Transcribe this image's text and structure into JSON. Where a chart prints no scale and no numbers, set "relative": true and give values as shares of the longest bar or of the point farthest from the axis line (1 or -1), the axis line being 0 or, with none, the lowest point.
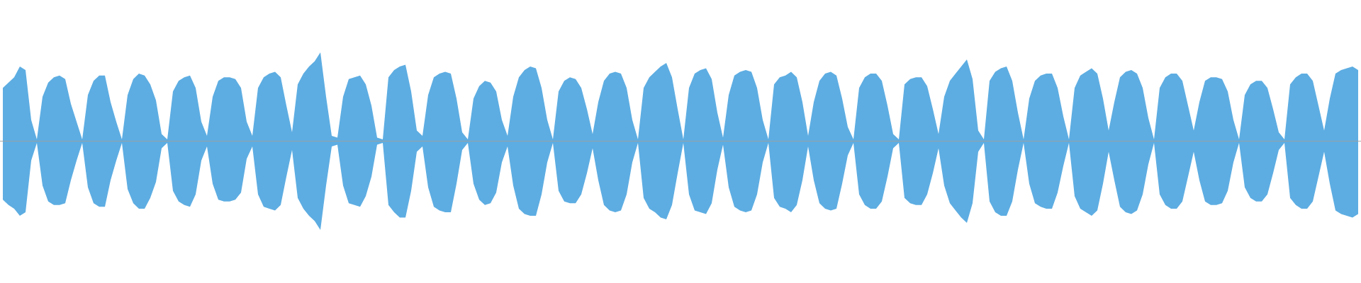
{
  "chart_data": {
    "type": "area",
    "relative": true,
    "categories": [
      null,
      null,
      null,
      null,
      null,
      null,
      null,
      null,
      null,
      null,
      null,
      null,
      null,
      null,
      null,
      null,
      null,
      null,
      null,
      null,
      null,
      null,
      null,
      null,
      null,
      null,
      null,
      null,
      null,
      null,
      null,
      null,
      null,
      null,
      null,
      null,
      null,
      null,
      null,
      null,
      null,
      null,
      null,
      null,
      null,
      null,
      null,
      null,
      null,
      null,
      null,
      null,
      null,
      null,
      null,
      null,
      null,
      null,
      null,
      null,
      null,
      null,
      null,
      null,
      null,
      null,
      null,
      null,
      null,
      null,
      null,
      null,
      null,
      null,
      null,
      null,
      null,
      null,
      null,
      null,
      null,
      null,
      null,
      null,
      null,
      null,
      null,
      null,
      null,
      null,
      null,
      null,
      null,
      null,
      null,
      null,
      null,
      null,
      null,
      null,
      null,
      null,
      null,
      null,
      null,
      null,
      null,
      null,
      null,
      null,
      null,
      null,
      null,
      null,
      null,
      null,
      null,
      null,
      null,
      null,
      null,
      null,
      null,
      null,
      null,
      null,
      null,
      null,
      null,
      null,
      null,
      null,
      null,
      null,
      null,
      null,
      null,
      null,
      null,
      null,
      null,
      null,
      null,
      null,
      null,
      null,
      null,
      null,
      null,
      null,
      null,
      null,
      null,
      null,
      null,
      null,
      null,
      null,
      null,
      null,
      null,
      null,
      null,
      null,
      null,
      null,
      null,
      null,
      null,
      null,
      null,
      null,
      null,
      null,
      null,
      null,
      null,
      null,
      null,
      null,
      null,
      null,
      null,
      null,
      null,
      null,
      null,
      null,
      null,
      null,
      null,
      null,
      null,
      null,
      null,
      null,
      null,
      null,
      null,
      null,
      null,
      null,
      null,
      null,
      null,
      null,
      null,
      null,
      null,
      null,
      null,
      null,
      null,
      null,
      null,
      null,
      null,
      null,
      null,
      null,
      null,
      null,
      null,
      null,
      null,
      null,
      null,
      null,
      null,
      null,
      null,
      null,
      null,
      null,
      null,
      null,
      null,
      null,
      null,
      null
    ],
    "series": [
      {
        "color": "#5dade2",
        "values": [
          0.6,
          0.66,
          0.72,
          0.84,
          0.8,
          0.24,
          0.02,
          0.5,
          0.66,
          0.72,
          0.74,
          0.7,
          0.42,
          0.22,
          0.02,
          0.52,
          0.68,
          0.74,
          0.74,
          0.44,
          0.22,
          0.02,
          0.52,
          0.7,
          0.76,
          0.74,
          0.64,
          0.46,
          0.08,
          0.02,
          0.56,
          0.68,
          0.72,
          0.74,
          0.6,
          0.22,
          0.06,
          0.5,
          0.68,
          0.72,
          0.72,
          0.7,
          0.6,
          0.22,
          0.06,
          0.6,
          0.72,
          0.76,
          0.78,
          0.72,
          0.4,
          0.1,
          0.64,
          0.76,
          0.84,
          0.9,
          1.0,
          0.5,
          0.06,
          0.04,
          0.5,
          0.7,
          0.72,
          0.74,
          0.64,
          0.4,
          0.04,
          0.02,
          0.72,
          0.8,
          0.84,
          0.86,
          0.56,
          0.12,
          0.06,
          0.52,
          0.72,
          0.76,
          0.78,
          0.76,
          0.48,
          0.1,
          0.02,
          0.48,
          0.62,
          0.68,
          0.66,
          0.56,
          0.24,
          0.06,
          0.5,
          0.72,
          0.8,
          0.84,
          0.82,
          0.6,
          0.24,
          0.02,
          0.56,
          0.68,
          0.72,
          0.7,
          0.6,
          0.36,
          0.08,
          0.44,
          0.68,
          0.76,
          0.78,
          0.76,
          0.6,
          0.24,
          0.02,
          0.6,
          0.72,
          0.78,
          0.84,
          0.88,
          0.72,
          0.36,
          0.02,
          0.6,
          0.76,
          0.8,
          0.82,
          0.7,
          0.32,
          0.04,
          0.52,
          0.74,
          0.78,
          0.8,
          0.78,
          0.6,
          0.24,
          0.02,
          0.64,
          0.72,
          0.74,
          0.78,
          0.72,
          0.44,
          0.06,
          0.44,
          0.68,
          0.76,
          0.78,
          0.74,
          0.48,
          0.16,
          0.02,
          0.6,
          0.72,
          0.76,
          0.76,
          0.68,
          0.4,
          0.08,
          0.02,
          0.64,
          0.7,
          0.72,
          0.72,
          0.62,
          0.36,
          0.08,
          0.5,
          0.68,
          0.76,
          0.84,
          0.92,
          0.7,
          0.12,
          0.02,
          0.68,
          0.78,
          0.82,
          0.84,
          0.68,
          0.32,
          0.02,
          0.48,
          0.68,
          0.74,
          0.76,
          0.76,
          0.6,
          0.28,
          0.02,
          0.6,
          0.74,
          0.78,
          0.82,
          0.76,
          0.48,
          0.12,
          0.44,
          0.72,
          0.78,
          0.8,
          0.76,
          0.6,
          0.26,
          0.02,
          0.6,
          0.72,
          0.76,
          0.76,
          0.68,
          0.4,
          0.12,
          0.44,
          0.68,
          0.72,
          0.72,
          0.7,
          0.56,
          0.24,
          0.02,
          0.52,
          0.64,
          0.68,
          0.68,
          0.6,
          0.36,
          0.1,
          0.02,
          0.64,
          0.72,
          0.76,
          0.76,
          0.68,
          0.4,
          0.12,
          0.48,
          0.76,
          0.8,
          0.82,
          0.84,
          0.8
        ]
      },
      {
        "color": "#5dade2",
        "values": [
          -0.66,
          -0.72,
          -0.76,
          -0.84,
          -0.8,
          -0.22,
          -0.02,
          -0.5,
          -0.68,
          -0.72,
          -0.72,
          -0.7,
          -0.44,
          -0.22,
          -0.02,
          -0.52,
          -0.7,
          -0.74,
          -0.74,
          -0.44,
          -0.22,
          -0.02,
          -0.54,
          -0.7,
          -0.76,
          -0.76,
          -0.64,
          -0.46,
          -0.08,
          -0.02,
          -0.56,
          -0.68,
          -0.72,
          -0.74,
          -0.6,
          -0.22,
          -0.06,
          -0.48,
          -0.66,
          -0.68,
          -0.68,
          -0.66,
          -0.58,
          -0.2,
          -0.06,
          -0.6,
          -0.74,
          -0.76,
          -0.78,
          -0.72,
          -0.4,
          -0.1,
          -0.64,
          -0.76,
          -0.84,
          -0.9,
          -1.0,
          -0.5,
          -0.06,
          -0.04,
          -0.5,
          -0.7,
          -0.72,
          -0.74,
          -0.62,
          -0.4,
          -0.04,
          -0.02,
          -0.72,
          -0.8,
          -0.86,
          -0.86,
          -0.56,
          -0.12,
          -0.06,
          -0.52,
          -0.74,
          -0.78,
          -0.8,
          -0.8,
          -0.48,
          -0.1,
          -0.02,
          -0.48,
          -0.66,
          -0.72,
          -0.7,
          -0.58,
          -0.24,
          -0.06,
          -0.5,
          -0.76,
          -0.82,
          -0.84,
          -0.84,
          -0.6,
          -0.24,
          -0.02,
          -0.56,
          -0.68,
          -0.7,
          -0.7,
          -0.6,
          -0.36,
          -0.08,
          -0.44,
          -0.72,
          -0.78,
          -0.8,
          -0.78,
          -0.6,
          -0.24,
          -0.02,
          -0.64,
          -0.76,
          -0.8,
          -0.86,
          -0.88,
          -0.72,
          -0.36,
          -0.02,
          -0.6,
          -0.78,
          -0.8,
          -0.82,
          -0.7,
          -0.32,
          -0.04,
          -0.52,
          -0.74,
          -0.78,
          -0.8,
          -0.78,
          -0.6,
          -0.24,
          -0.02,
          -0.64,
          -0.74,
          -0.76,
          -0.8,
          -0.72,
          -0.44,
          -0.06,
          -0.44,
          -0.7,
          -0.76,
          -0.78,
          -0.76,
          -0.48,
          -0.16,
          -0.02,
          -0.6,
          -0.72,
          -0.76,
          -0.76,
          -0.68,
          -0.4,
          -0.08,
          -0.02,
          -0.64,
          -0.7,
          -0.72,
          -0.72,
          -0.6,
          -0.36,
          -0.08,
          -0.5,
          -0.7,
          -0.78,
          -0.86,
          -0.92,
          -0.7,
          -0.12,
          -0.02,
          -0.68,
          -0.8,
          -0.84,
          -0.84,
          -0.68,
          -0.32,
          -0.02,
          -0.48,
          -0.7,
          -0.74,
          -0.76,
          -0.76,
          -0.58,
          -0.28,
          -0.02,
          -0.62,
          -0.76,
          -0.8,
          -0.84,
          -0.78,
          -0.48,
          -0.12,
          -0.44,
          -0.74,
          -0.8,
          -0.82,
          -0.78,
          -0.6,
          -0.26,
          -0.02,
          -0.6,
          -0.72,
          -0.76,
          -0.76,
          -0.68,
          -0.4,
          -0.12,
          -0.44,
          -0.68,
          -0.72,
          -0.72,
          -0.7,
          -0.56,
          -0.24,
          -0.02,
          -0.52,
          -0.64,
          -0.68,
          -0.68,
          -0.6,
          -0.36,
          -0.1,
          -0.02,
          -0.64,
          -0.72,
          -0.76,
          -0.76,
          -0.68,
          -0.4,
          -0.12,
          -0.48,
          -0.78,
          -0.82,
          -0.84,
          -0.86,
          -0.82
        ]
      }
    ]
  }
}
